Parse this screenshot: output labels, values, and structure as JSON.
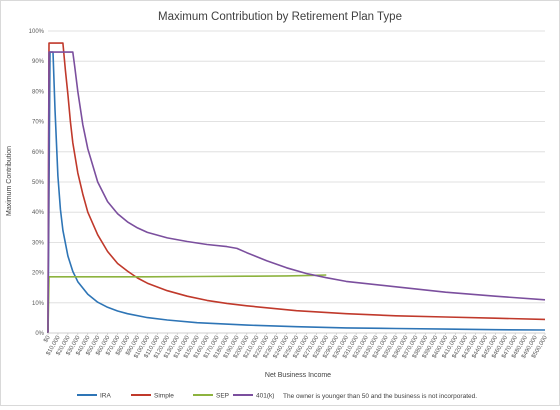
{
  "chart_data": {
    "type": "line",
    "title": "Maximum Contribution by Retirement Plan Type",
    "xlabel": "Net Business Income",
    "ylabel": "Maximum Contribution",
    "ylim": [
      0,
      100
    ],
    "xlim": [
      0,
      500000
    ],
    "y_ticks": [
      "0%",
      "10%",
      "20%",
      "30%",
      "40%",
      "50%",
      "60%",
      "70%",
      "80%",
      "90%",
      "100%"
    ],
    "x_ticks": [
      "$0",
      "$10,000",
      "$20,000",
      "$30,000",
      "$40,000",
      "$50,000",
      "$60,000",
      "$70,000",
      "$80,000",
      "$90,000",
      "$100,000",
      "$110,000",
      "$120,000",
      "$130,000",
      "$140,000",
      "$150,000",
      "$160,000",
      "$170,000",
      "$180,000",
      "$190,000",
      "$200,000",
      "$210,000",
      "$220,000",
      "$230,000",
      "$240,000",
      "$250,000",
      "$260,000",
      "$270,000",
      "$280,000",
      "$290,000",
      "$300,000",
      "$310,000",
      "$320,000",
      "$330,000",
      "$340,000",
      "$350,000",
      "$360,000",
      "$370,000",
      "$380,000",
      "$390,000",
      "$400,000",
      "$410,000",
      "$420,000",
      "$430,000",
      "$440,000",
      "$450,000",
      "$460,000",
      "$470,000",
      "$480,000",
      "$490,000",
      "$500,000"
    ],
    "grid": true,
    "legend_position": "bottom",
    "note": "The owner is younger than 50 and the business is not incorporated.",
    "series": [
      {
        "name": "IRA",
        "color": "#2E75B6",
        "points": [
          [
            0,
            0
          ],
          [
            2000,
            93
          ],
          [
            5000,
            93
          ],
          [
            7000,
            74
          ],
          [
            10000,
            52
          ],
          [
            12500,
            41
          ],
          [
            15000,
            34
          ],
          [
            20000,
            25.5
          ],
          [
            25000,
            20.4
          ],
          [
            30000,
            17
          ],
          [
            40000,
            12.8
          ],
          [
            50000,
            10.2
          ],
          [
            60000,
            8.5
          ],
          [
            70000,
            7.3
          ],
          [
            80000,
            6.4
          ],
          [
            100000,
            5.1
          ],
          [
            120000,
            4.3
          ],
          [
            150000,
            3.4
          ],
          [
            200000,
            2.6
          ],
          [
            250000,
            2.1
          ],
          [
            300000,
            1.7
          ],
          [
            350000,
            1.5
          ],
          [
            400000,
            1.3
          ],
          [
            450000,
            1.1
          ],
          [
            500000,
            1
          ]
        ]
      },
      {
        "name": "Simple",
        "color": "#C0392B",
        "points": [
          [
            0,
            0
          ],
          [
            1000,
            96
          ],
          [
            15000,
            96
          ],
          [
            17500,
            87
          ],
          [
            20000,
            79
          ],
          [
            22500,
            70
          ],
          [
            25000,
            63
          ],
          [
            30000,
            53
          ],
          [
            35000,
            46
          ],
          [
            40000,
            40
          ],
          [
            50000,
            32.5
          ],
          [
            60000,
            27
          ],
          [
            70000,
            23
          ],
          [
            80000,
            20.5
          ],
          [
            90000,
            18.2
          ],
          [
            100000,
            16.5
          ],
          [
            120000,
            14
          ],
          [
            140000,
            12.2
          ],
          [
            160000,
            10.8
          ],
          [
            180000,
            9.8
          ],
          [
            200000,
            9
          ],
          [
            250000,
            7.4
          ],
          [
            300000,
            6.4
          ],
          [
            350000,
            5.7
          ],
          [
            400000,
            5.3
          ],
          [
            450000,
            4.9
          ],
          [
            500000,
            4.5
          ]
        ]
      },
      {
        "name": "SEP",
        "color": "#8DB33F",
        "points": [
          [
            0,
            0
          ],
          [
            1000,
            18.6
          ],
          [
            50000,
            18.6
          ],
          [
            100000,
            18.6
          ],
          [
            150000,
            18.7
          ],
          [
            200000,
            18.8
          ],
          [
            240000,
            18.9
          ],
          [
            270000,
            19.1
          ],
          [
            280000,
            19.2
          ]
        ]
      },
      {
        "name": "401(k)",
        "color": "#7B4F9E",
        "points": [
          [
            0,
            0
          ],
          [
            1000,
            93
          ],
          [
            25000,
            93
          ],
          [
            27000,
            88
          ],
          [
            30000,
            80
          ],
          [
            35000,
            69
          ],
          [
            40000,
            61
          ],
          [
            50000,
            50
          ],
          [
            60000,
            43.5
          ],
          [
            70000,
            39.5
          ],
          [
            80000,
            36.8
          ],
          [
            90000,
            34.8
          ],
          [
            100000,
            33.3
          ],
          [
            120000,
            31.5
          ],
          [
            140000,
            30.3
          ],
          [
            160000,
            29.3
          ],
          [
            180000,
            28.6
          ],
          [
            190000,
            28
          ],
          [
            200000,
            26.6
          ],
          [
            220000,
            23.9
          ],
          [
            240000,
            21.6
          ],
          [
            260000,
            19.7
          ],
          [
            280000,
            18.3
          ],
          [
            300000,
            17.1
          ],
          [
            350000,
            15.3
          ],
          [
            400000,
            13.5
          ],
          [
            450000,
            12.2
          ],
          [
            500000,
            11
          ]
        ]
      }
    ]
  }
}
